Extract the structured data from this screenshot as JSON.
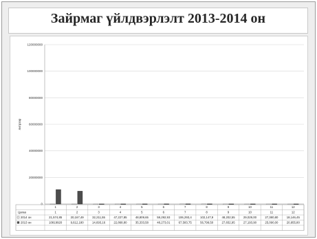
{
  "chart_data": {
    "type": "bar",
    "title": "Зайрмаг үйлдвэрлэлт 2013-2014 он",
    "ylabel": "литрээр",
    "xlabel": "",
    "ylim": [
      0,
      120000000
    ],
    "y_ticks": [
      "0",
      "20000000",
      "40000000",
      "60000000",
      "80000000",
      "100000000",
      "120000000"
    ],
    "categories": [
      "1",
      "2",
      "3",
      "4",
      "5",
      "6",
      "7",
      "8",
      "9",
      "10",
      "11",
      "12"
    ],
    "grid": true,
    "legend": "table-below",
    "series": [
      {
        "name": "2014 он",
        "color": "#f4f4f4",
        "values": [
          21574.85,
          20167.49,
          32211.55,
          47227.85,
          48809.65,
          59292.93,
          106293.4,
          102147.9,
          48202.55,
          29029,
          27380.8,
          18146.45
        ],
        "value_labels": [
          "21,574,85",
          "20,167,49",
          "32,211,55",
          "47,227,85",
          "48,809,65",
          "59,292,93",
          "106,293,4",
          "102,147,9",
          "48,202,55",
          "29,029,00",
          "27,380,80",
          "18,146,45"
        ]
      },
      {
        "name": "2013 он",
        "color": "#4d4d4d",
        "values": [
          10819920,
          9612180,
          14693.16,
          22868.8,
          35333.58,
          48273.01,
          67583.75,
          56799.5,
          27832.95,
          27193.9,
          25090,
          20955.8
        ],
        "value_labels": [
          "10819920",
          "9,612,180",
          "14,693,16",
          "22,868,80",
          "35,333,58",
          "48,273,01",
          "67,583,75",
          "56,799,50",
          "27,832,95",
          "27,193,90",
          "25,090,00",
          "20,955,80"
        ]
      }
    ],
    "table": {
      "header_label": "Цагаа",
      "month_numbers": [
        "1",
        "2",
        "3",
        "4",
        "5",
        "6",
        "7",
        "8",
        "9",
        "10",
        "11",
        "12"
      ]
    }
  }
}
